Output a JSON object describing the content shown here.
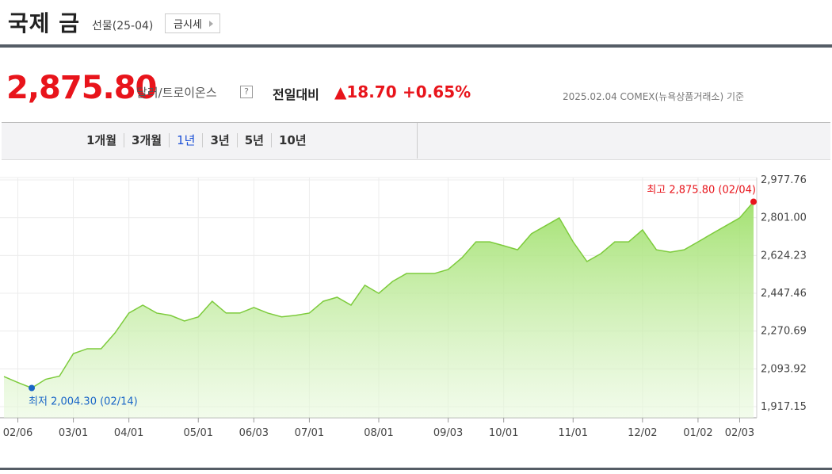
{
  "header": {
    "title": "국제 금",
    "subtitle": "선물(25-04)",
    "button": "금시세"
  },
  "price": {
    "value": "2,875.80",
    "unit": "달러/트로이온스",
    "help": "?",
    "change_label": "전일대비",
    "change": "▲18.70",
    "change_pct": "+0.65%",
    "date_note": "2025.02.04 COMEX(뉴욕상품거래소) 기준"
  },
  "tabs": {
    "items": [
      "1개월",
      "3개월",
      "1년",
      "3년",
      "5년",
      "10년"
    ],
    "selected": 2
  },
  "chart_data": {
    "type": "area",
    "color": "#7dcb3c",
    "grid": true,
    "categories": [
      null,
      "02/06",
      null,
      null,
      null,
      "03/01",
      null,
      null,
      null,
      "04/01",
      null,
      null,
      null,
      null,
      "05/01",
      null,
      null,
      null,
      "06/03",
      null,
      null,
      null,
      "07/01",
      null,
      null,
      null,
      null,
      "08/01",
      null,
      null,
      null,
      null,
      "09/03",
      null,
      null,
      null,
      "10/01",
      null,
      null,
      null,
      null,
      "11/01",
      null,
      null,
      null,
      null,
      "12/02",
      null,
      null,
      null,
      "01/02",
      null,
      null,
      "02/03",
      null
    ],
    "values": [
      2058,
      2030,
      2004.3,
      2045,
      2060,
      2165,
      2188,
      2188,
      2262,
      2355,
      2392,
      2355,
      2344,
      2318,
      2337,
      2410,
      2355,
      2355,
      2381,
      2355,
      2337,
      2344,
      2355,
      2410,
      2429,
      2392,
      2485,
      2447,
      2503,
      2540,
      2540,
      2540,
      2559,
      2614,
      2688,
      2688,
      2670,
      2651,
      2726,
      2763,
      2800,
      2688,
      2596,
      2633,
      2688,
      2688,
      2744,
      2651,
      2640,
      2651,
      2688,
      2726,
      2763,
      2800,
      2875.8
    ],
    "ylim": [
      1917.15,
      2977.76
    ],
    "yticks": [
      {
        "value": 2977.76,
        "label": "2,977.76"
      },
      {
        "value": 2801.0,
        "label": "2,801.00"
      },
      {
        "value": 2624.23,
        "label": "2,624.23"
      },
      {
        "value": 2447.46,
        "label": "2,447.46"
      },
      {
        "value": 2270.69,
        "label": "2,270.69"
      },
      {
        "value": 2093.92,
        "label": "2,093.92"
      },
      {
        "value": 1917.15,
        "label": "1,917.15"
      }
    ],
    "annotations": [
      {
        "text": "최고 2,875.80 (02/04)",
        "index": 54,
        "color": "#e8141b"
      },
      {
        "text": "최저 2,004.30 (02/14)",
        "index": 2,
        "color": "#1a66c7"
      }
    ]
  }
}
